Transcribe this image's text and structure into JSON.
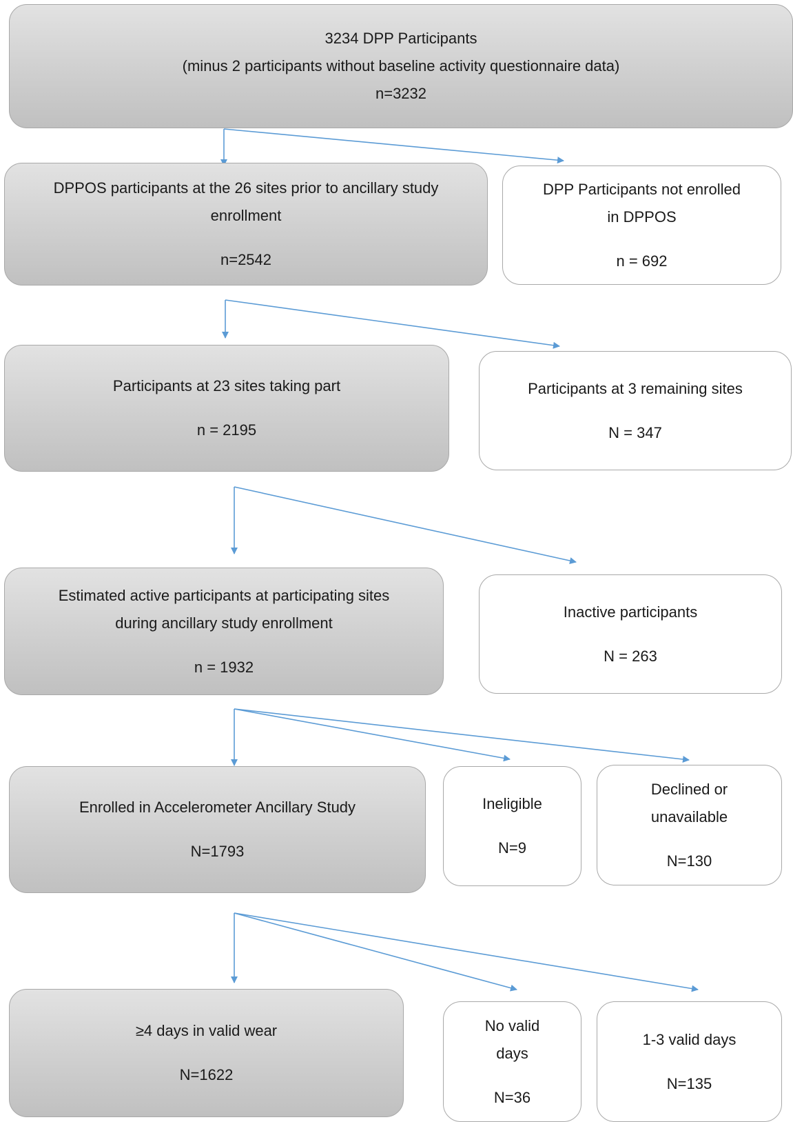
{
  "boxes": {
    "top": {
      "lines": [
        "3234 DPP Participants",
        "(minus 2 participants without baseline activity questionnaire data)"
      ],
      "count": "n=3232"
    },
    "dppos": {
      "lines": [
        "DPPOS participants at the 26 sites prior to ancillary study",
        "enrollment"
      ],
      "count": "n=2542"
    },
    "not_enrolled": {
      "lines": [
        "DPP Participants not enrolled",
        "in DPPOS"
      ],
      "count": "n = 692"
    },
    "sites23": {
      "lines": [
        "Participants at 23 sites taking part"
      ],
      "count": "n = 2195"
    },
    "sites3": {
      "lines": [
        "Participants at 3 remaining sites"
      ],
      "count": "N = 347"
    },
    "active": {
      "lines": [
        "Estimated active participants at participating sites",
        "during ancillary study enrollment"
      ],
      "count": "n = 1932"
    },
    "inactive": {
      "lines": [
        "Inactive participants"
      ],
      "count": "N = 263"
    },
    "enrolled": {
      "lines": [
        "Enrolled in Accelerometer Ancillary Study"
      ],
      "count": "N=1793"
    },
    "ineligible": {
      "lines": [
        "Ineligible"
      ],
      "count": "N=9"
    },
    "declined": {
      "lines": [
        "Declined or",
        "unavailable"
      ],
      "count": "N=130"
    },
    "valid4": {
      "lines": [
        "≥4 days in valid wear"
      ],
      "count": "N=1622"
    },
    "novalid": {
      "lines": [
        "No valid",
        "days"
      ],
      "count": "N=36"
    },
    "valid13": {
      "lines": [
        "1-3 valid days"
      ],
      "count": "N=135"
    }
  },
  "colors": {
    "arrow": "#5b9bd5",
    "box_border": "#a8a8a8",
    "grey_fill": "#cfcfcf"
  }
}
